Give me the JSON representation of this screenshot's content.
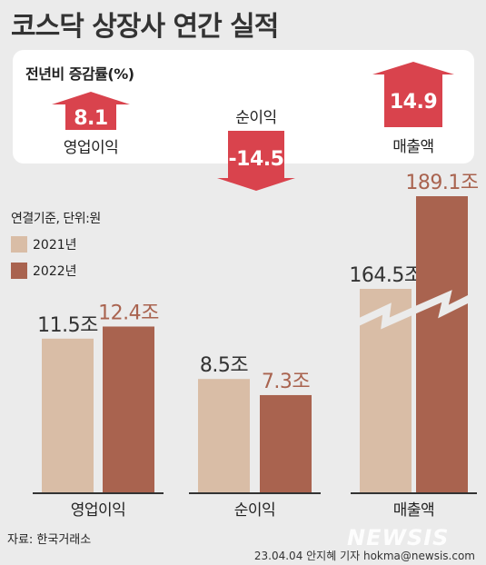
{
  "title": "코스닥 상장사 연간 실적",
  "change_panel": {
    "title": "전년비 증감률(%)",
    "items": [
      {
        "label": "영업이익",
        "value": "8.1",
        "direction": "up"
      },
      {
        "label": "순이익",
        "value": "-14.5",
        "direction": "down"
      },
      {
        "label": "매출액",
        "value": "14.9",
        "direction": "up"
      }
    ],
    "arrow_color": "#d9434d"
  },
  "unit_note": "연결기준, 단위:원",
  "legend": [
    {
      "label": "2021년",
      "color": "#d9bda6"
    },
    {
      "label": "2022년",
      "color": "#a9634f"
    }
  ],
  "chart_data": {
    "type": "bar",
    "categories": [
      "영업이익",
      "순이익",
      "매출액"
    ],
    "series": [
      {
        "name": "2021년",
        "values": [
          11.5,
          8.5,
          164.5
        ],
        "labels": [
          "11.5조",
          "8.5조",
          "164.5조"
        ],
        "color": "#d9bda6",
        "label_color": "#333333"
      },
      {
        "name": "2022년",
        "values": [
          12.4,
          7.3,
          189.1
        ],
        "labels": [
          "12.4조",
          "7.3조",
          "189.1조"
        ],
        "color": "#a9634f",
        "label_color": "#a9634f"
      }
    ],
    "axis_break": {
      "category": "매출액"
    }
  },
  "source": "자료: 한국거래소",
  "credit": "23.04.04 안지혜 기자 hokma@newsis.com",
  "logo": "NEWSIS"
}
